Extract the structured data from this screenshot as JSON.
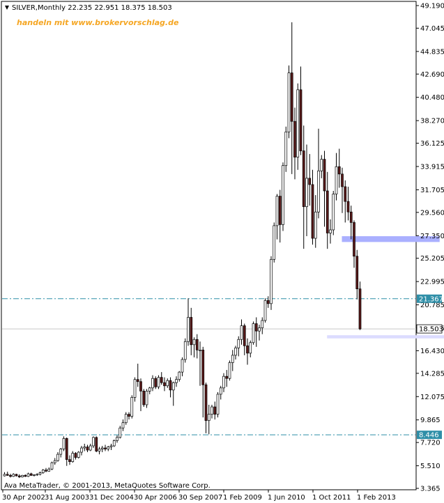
{
  "header": {
    "symbol_line": "SILVER,Monthly  22.235 22.951 18.375 18.503",
    "promo": "handeln mit www.brokervorschlag.de",
    "copyright": "Ava MetaTrader, © 2001-2013, MetaQuotes Software Corp."
  },
  "colors": {
    "bull_body": "#ffffff",
    "bear_body": "#5a1a1a",
    "wick": "#000000",
    "dashdot_line": "#2f8fa8",
    "support_zone": "#aab0ff",
    "support_zone_light": "#dcdcff",
    "current_tag_bg": "#ffffff",
    "level_tag_bg": "#2f8fa8",
    "promo_text": "#f5a623"
  },
  "chart_data": {
    "type": "candlestick",
    "symbol": "SILVER",
    "timeframe": "Monthly",
    "last_bar": {
      "open": 22.235,
      "high": 22.951,
      "low": 18.375,
      "close": 18.503
    },
    "ylim": [
      3.365,
      49.19
    ],
    "y_ticks": [
      "49.190",
      "47.045",
      "44.835",
      "42.690",
      "40.480",
      "38.270",
      "36.125",
      "33.915",
      "31.705",
      "29.560",
      "27.350",
      "25.205",
      "22.995",
      "20.785",
      "18.575",
      "16.430",
      "14.285",
      "12.075",
      "9.865",
      "7.720",
      "5.510",
      "3.365"
    ],
    "x_tick_labels": [
      "30 Apr 2002",
      "31 Aug 2003",
      "31 Dec 2004",
      "30 Apr 2006",
      "30 Sep 2007",
      "1 Feb 2009",
      "1 Jun 2010",
      "1 Oct 2011",
      "1 Feb 2013"
    ],
    "horizontal_levels": [
      {
        "value": 21.367,
        "label": "21.367",
        "style": "dash-dot"
      },
      {
        "value": 8.446,
        "label": "8.446",
        "style": "dash-dot"
      }
    ],
    "current_price": {
      "value": 18.503,
      "label": "18.503"
    },
    "zones": [
      {
        "name": "resistance-support-zone",
        "from_bar": 114,
        "to_bar": 147,
        "low": 26.75,
        "high": 27.3
      },
      {
        "name": "lower-support-line",
        "from_bar": 109,
        "to_bar": 150,
        "low": 17.6,
        "high": 17.9
      }
    ],
    "candles": [
      [
        4.55,
        4.9,
        4.5,
        4.7
      ],
      [
        4.7,
        4.95,
        4.55,
        4.6
      ],
      [
        4.6,
        4.75,
        4.4,
        4.5
      ],
      [
        4.5,
        4.8,
        4.45,
        4.7
      ],
      [
        4.7,
        4.75,
        4.5,
        4.55
      ],
      [
        4.55,
        4.7,
        4.35,
        4.45
      ],
      [
        4.45,
        4.65,
        4.4,
        4.6
      ],
      [
        4.6,
        4.7,
        4.45,
        4.5
      ],
      [
        4.5,
        4.85,
        4.45,
        4.75
      ],
      [
        4.75,
        4.85,
        4.55,
        4.6
      ],
      [
        4.6,
        4.7,
        4.5,
        4.65
      ],
      [
        4.65,
        4.8,
        4.55,
        4.7
      ],
      [
        4.7,
        4.95,
        4.6,
        4.85
      ],
      [
        4.85,
        5.2,
        4.75,
        5.1
      ],
      [
        5.1,
        5.3,
        4.9,
        5.0
      ],
      [
        5.0,
        5.35,
        4.95,
        5.2
      ],
      [
        5.2,
        5.9,
        5.1,
        5.8
      ],
      [
        5.8,
        6.25,
        5.6,
        6.0
      ],
      [
        6.0,
        6.8,
        5.9,
        6.6
      ],
      [
        6.6,
        7.2,
        6.3,
        7.1
      ],
      [
        7.1,
        8.3,
        6.9,
        8.1
      ],
      [
        8.1,
        8.2,
        5.5,
        6.1
      ],
      [
        6.1,
        6.5,
        5.6,
        5.9
      ],
      [
        5.9,
        6.9,
        5.8,
        6.7
      ],
      [
        6.7,
        6.8,
        6.1,
        6.3
      ],
      [
        6.3,
        6.9,
        6.2,
        6.8
      ],
      [
        6.8,
        7.4,
        6.5,
        7.2
      ],
      [
        7.2,
        7.6,
        6.9,
        7.3
      ],
      [
        7.3,
        7.5,
        6.8,
        7.0
      ],
      [
        7.0,
        7.6,
        6.9,
        7.4
      ],
      [
        7.4,
        8.3,
        7.2,
        8.2
      ],
      [
        8.2,
        8.3,
        6.8,
        6.9
      ],
      [
        6.9,
        7.3,
        6.6,
        7.1
      ],
      [
        7.1,
        7.4,
        6.8,
        7.2
      ],
      [
        7.2,
        7.5,
        6.9,
        7.1
      ],
      [
        7.1,
        7.4,
        6.9,
        7.3
      ],
      [
        7.3,
        7.6,
        7.0,
        7.4
      ],
      [
        7.4,
        8.0,
        7.3,
        7.9
      ],
      [
        7.9,
        8.4,
        7.7,
        8.2
      ],
      [
        8.2,
        9.3,
        8.1,
        9.1
      ],
      [
        9.1,
        9.9,
        8.8,
        9.6
      ],
      [
        9.6,
        10.6,
        9.4,
        10.4
      ],
      [
        10.4,
        10.6,
        9.9,
        10.2
      ],
      [
        10.2,
        12.2,
        10.0,
        12.0
      ],
      [
        12.0,
        13.9,
        11.6,
        13.7
      ],
      [
        13.7,
        15.2,
        13.0,
        13.5
      ],
      [
        13.5,
        13.8,
        10.7,
        12.6
      ],
      [
        12.6,
        12.8,
        11.1,
        11.3
      ],
      [
        11.3,
        12.8,
        11.0,
        12.6
      ],
      [
        12.6,
        13.0,
        12.3,
        12.9
      ],
      [
        12.9,
        14.1,
        12.6,
        13.8
      ],
      [
        13.8,
        14.0,
        12.8,
        13.0
      ],
      [
        13.0,
        14.1,
        12.8,
        13.9
      ],
      [
        13.9,
        14.4,
        13.2,
        13.4
      ],
      [
        13.4,
        13.9,
        12.6,
        13.1
      ],
      [
        13.1,
        13.8,
        12.9,
        13.6
      ],
      [
        13.6,
        13.9,
        12.0,
        12.7
      ],
      [
        12.7,
        13.5,
        11.2,
        13.4
      ],
      [
        13.4,
        14.0,
        13.0,
        13.7
      ],
      [
        13.7,
        14.5,
        13.5,
        14.4
      ],
      [
        14.4,
        15.8,
        14.0,
        15.6
      ],
      [
        15.6,
        17.6,
        15.3,
        17.3
      ],
      [
        17.3,
        21.4,
        16.9,
        19.6
      ],
      [
        19.6,
        20.5,
        16.0,
        17.0
      ],
      [
        17.0,
        17.7,
        15.8,
        17.5
      ],
      [
        17.5,
        18.0,
        15.7,
        16.5
      ],
      [
        16.5,
        17.3,
        13.1,
        16.5
      ],
      [
        16.5,
        16.8,
        10.1,
        13.2
      ],
      [
        13.2,
        13.4,
        8.6,
        9.8
      ],
      [
        9.8,
        11.3,
        8.5,
        10.4
      ],
      [
        10.4,
        11.3,
        10.0,
        11.1
      ],
      [
        11.1,
        11.6,
        9.9,
        10.4
      ],
      [
        10.4,
        12.5,
        10.1,
        12.3
      ],
      [
        12.3,
        13.1,
        11.8,
        12.9
      ],
      [
        12.9,
        14.3,
        12.5,
        14.0
      ],
      [
        14.0,
        14.6,
        13.0,
        13.8
      ],
      [
        13.8,
        15.5,
        13.6,
        15.3
      ],
      [
        15.3,
        16.5,
        14.5,
        16.0
      ],
      [
        16.0,
        16.9,
        15.6,
        16.7
      ],
      [
        16.7,
        17.8,
        15.9,
        17.5
      ],
      [
        17.5,
        19.4,
        17.0,
        18.8
      ],
      [
        18.8,
        19.0,
        16.0,
        16.9
      ],
      [
        16.9,
        17.6,
        15.1,
        16.2
      ],
      [
        16.2,
        17.4,
        15.8,
        17.2
      ],
      [
        17.2,
        19.2,
        17.0,
        19.0
      ],
      [
        19.0,
        19.6,
        16.8,
        18.3
      ],
      [
        18.3,
        18.9,
        17.4,
        18.6
      ],
      [
        18.6,
        19.6,
        18.0,
        19.3
      ],
      [
        19.3,
        21.4,
        19.1,
        21.2
      ],
      [
        21.2,
        21.6,
        20.5,
        20.9
      ],
      [
        20.9,
        25.4,
        20.3,
        25.1
      ],
      [
        25.1,
        28.6,
        24.8,
        28.3
      ],
      [
        28.3,
        31.3,
        27.0,
        31.1
      ],
      [
        31.1,
        31.7,
        26.7,
        28.4
      ],
      [
        28.4,
        34.3,
        27.8,
        34.0
      ],
      [
        34.0,
        37.7,
        33.4,
        37.2
      ],
      [
        37.2,
        43.5,
        36.6,
        42.8
      ],
      [
        42.8,
        47.6,
        33.2,
        38.2
      ],
      [
        38.2,
        39.5,
        32.7,
        34.8
      ],
      [
        34.8,
        41.8,
        33.6,
        41.2
      ],
      [
        41.2,
        43.4,
        35.0,
        35.4
      ],
      [
        35.4,
        37.8,
        26.1,
        30.1
      ],
      [
        30.1,
        36.0,
        27.3,
        32.8
      ],
      [
        32.8,
        35.1,
        30.2,
        32.2
      ],
      [
        32.2,
        33.6,
        26.5,
        27.1
      ],
      [
        27.1,
        31.2,
        26.2,
        29.6
      ],
      [
        29.6,
        37.5,
        29.0,
        33.5
      ],
      [
        33.5,
        35.0,
        32.8,
        34.6
      ],
      [
        34.6,
        35.4,
        28.2,
        31.6
      ],
      [
        31.6,
        33.4,
        26.1,
        27.6
      ],
      [
        27.6,
        28.9,
        26.6,
        27.9
      ],
      [
        27.9,
        31.6,
        27.4,
        31.3
      ],
      [
        31.3,
        35.2,
        30.7,
        33.9
      ],
      [
        33.9,
        35.6,
        31.9,
        33.2
      ],
      [
        33.2,
        33.8,
        29.5,
        32.0
      ],
      [
        32.0,
        32.6,
        28.6,
        30.6
      ],
      [
        30.6,
        32.0,
        28.8,
        29.6
      ],
      [
        29.6,
        30.2,
        27.0,
        28.6
      ],
      [
        28.6,
        28.8,
        24.3,
        25.4
      ],
      [
        25.4,
        26.0,
        21.3,
        22.3
      ],
      [
        22.3,
        23.0,
        18.4,
        18.5
      ]
    ]
  }
}
